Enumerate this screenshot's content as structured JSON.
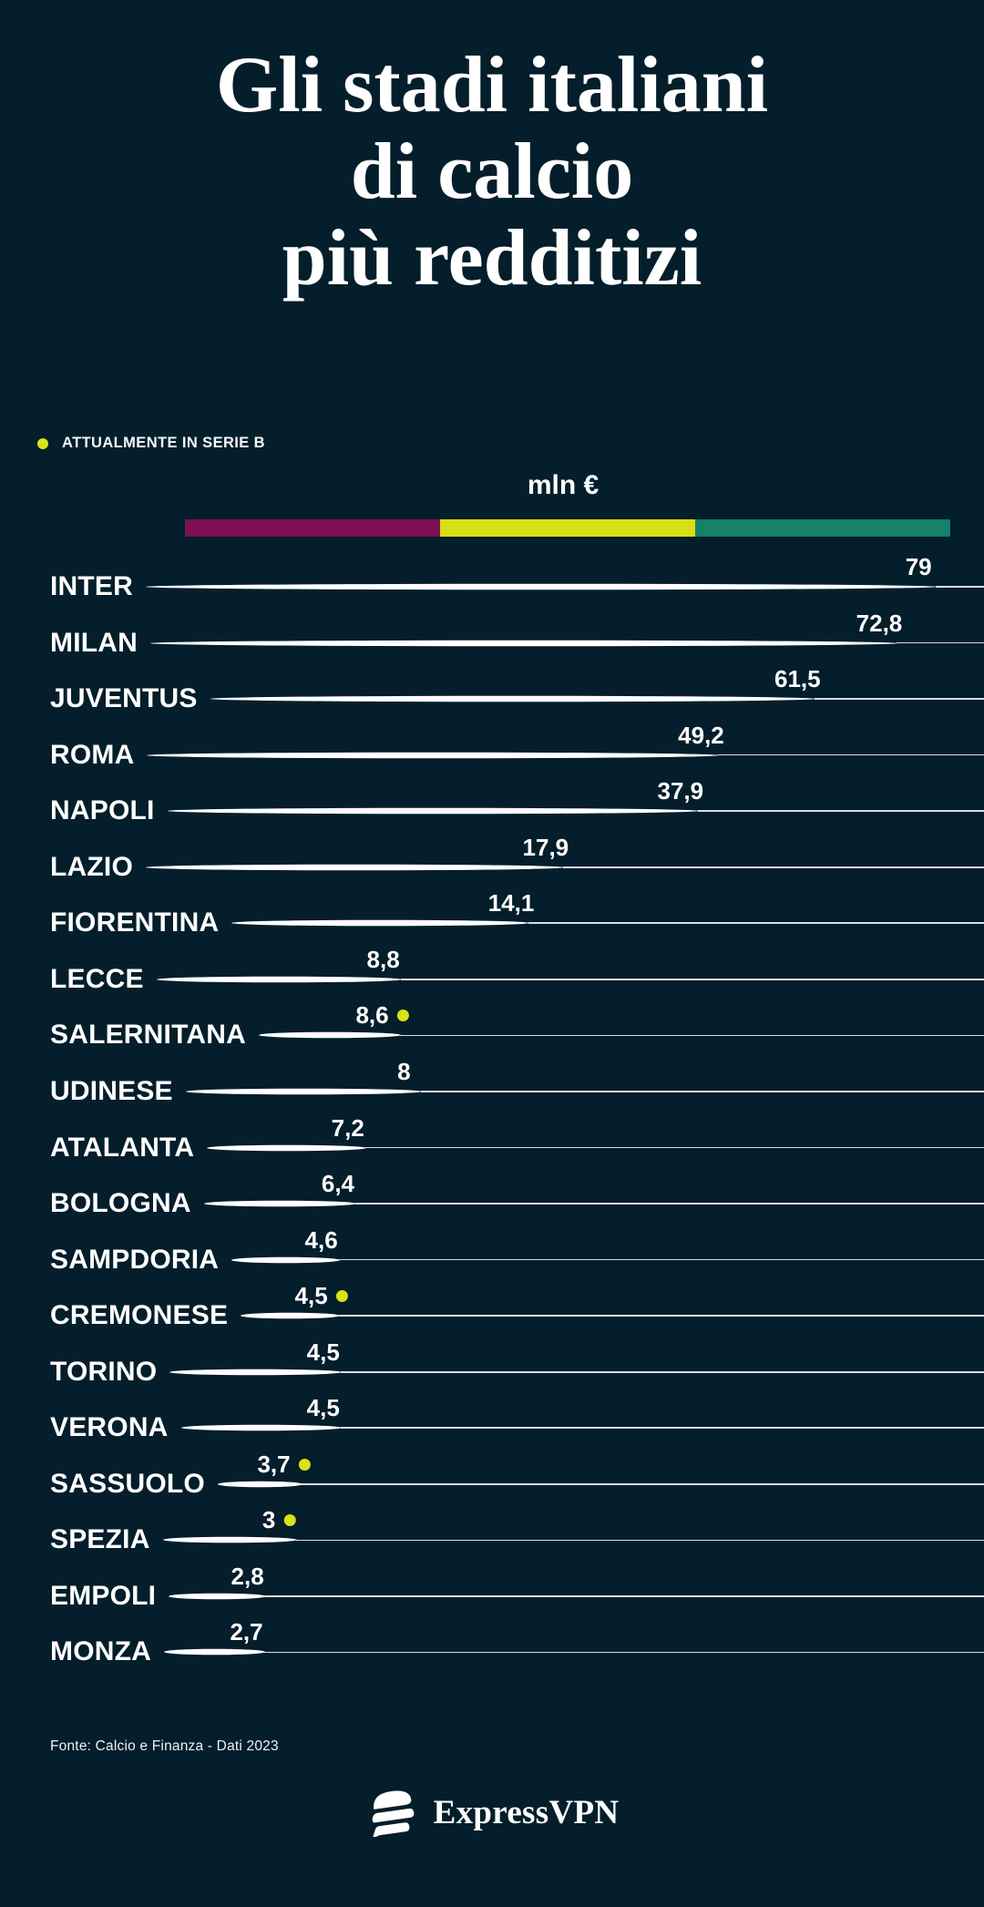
{
  "page": {
    "background_color": "#041e2b"
  },
  "header": {
    "title_lines": [
      "Gli stadi italiani",
      "di calcio",
      "più redditizi"
    ]
  },
  "legend": {
    "label": "ATTUALMENTE IN SERIE B",
    "dot_color": "#d9e118"
  },
  "chart_data": {
    "type": "bar",
    "title": "Gli stadi italiani di calcio più redditizi",
    "unit_label": "mln €",
    "orientation": "horizontal",
    "legend_note": "ATTUALMENTE IN SERIE B",
    "color_scale_bar": [
      "#7c1055",
      "#d8e014",
      "#138269"
    ],
    "serie_b_dot_color": "#d9e118",
    "line_color": "#ffffff",
    "xlim": [
      0,
      80
    ],
    "grid": false,
    "rows": [
      {
        "team": "INTER",
        "value": 79,
        "value_label": "79",
        "serie_b": false,
        "tip_frac": 0.952
      },
      {
        "team": "MILAN",
        "value": 72.8,
        "value_label": "72,8",
        "serie_b": false,
        "tip_frac": 0.912
      },
      {
        "team": "JUVENTUS",
        "value": 61.5,
        "value_label": "61,5",
        "serie_b": false,
        "tip_frac": 0.829
      },
      {
        "team": "ROMA",
        "value": 49.2,
        "value_label": "49,2",
        "serie_b": false,
        "tip_frac": 0.731
      },
      {
        "team": "NAPOLI",
        "value": 37.9,
        "value_label": "37,9",
        "serie_b": false,
        "tip_frac": 0.71
      },
      {
        "team": "LAZIO",
        "value": 17.9,
        "value_label": "17,9",
        "serie_b": false,
        "tip_frac": 0.573
      },
      {
        "team": "FIORENTINA",
        "value": 14.1,
        "value_label": "14,1",
        "serie_b": false,
        "tip_frac": 0.538
      },
      {
        "team": "LECCE",
        "value": 8.8,
        "value_label": "8,8",
        "serie_b": false,
        "tip_frac": 0.408
      },
      {
        "team": "SALERNITANA",
        "value": 8.6,
        "value_label": "8,6",
        "serie_b": true,
        "tip_frac": 0.407
      },
      {
        "team": "UDINESE",
        "value": 8,
        "value_label": "8",
        "serie_b": false,
        "tip_frac": 0.429
      },
      {
        "team": "ATALANTA",
        "value": 7.2,
        "value_label": "7,2",
        "serie_b": false,
        "tip_frac": 0.372
      },
      {
        "team": "BOLOGNA",
        "value": 6.4,
        "value_label": "6,4",
        "serie_b": false,
        "tip_frac": 0.362
      },
      {
        "team": "SAMPDORIA",
        "value": 4.6,
        "value_label": "4,6",
        "serie_b": false,
        "tip_frac": 0.345
      },
      {
        "team": "CREMONESE",
        "value": 4.5,
        "value_label": "4,5",
        "serie_b": true,
        "tip_frac": 0.345
      },
      {
        "team": "TORINO",
        "value": 4.5,
        "value_label": "4,5",
        "serie_b": false,
        "tip_frac": 0.347
      },
      {
        "team": "VERONA",
        "value": 4.5,
        "value_label": "4,5",
        "serie_b": false,
        "tip_frac": 0.347
      },
      {
        "team": "SASSUOLO",
        "value": 3.7,
        "value_label": "3,7",
        "serie_b": true,
        "tip_frac": 0.307
      },
      {
        "team": "SPEZIA",
        "value": 3,
        "value_label": "3",
        "serie_b": true,
        "tip_frac": 0.302
      },
      {
        "team": "EMPOLI",
        "value": 2.8,
        "value_label": "2,8",
        "serie_b": false,
        "tip_frac": 0.27
      },
      {
        "team": "MONZA",
        "value": 2.7,
        "value_label": "2,7",
        "serie_b": false,
        "tip_frac": 0.269
      }
    ]
  },
  "footer": {
    "source": "Fonte: Calcio e Finanza - Dati 2023",
    "brand_name": "ExpressVPN"
  }
}
